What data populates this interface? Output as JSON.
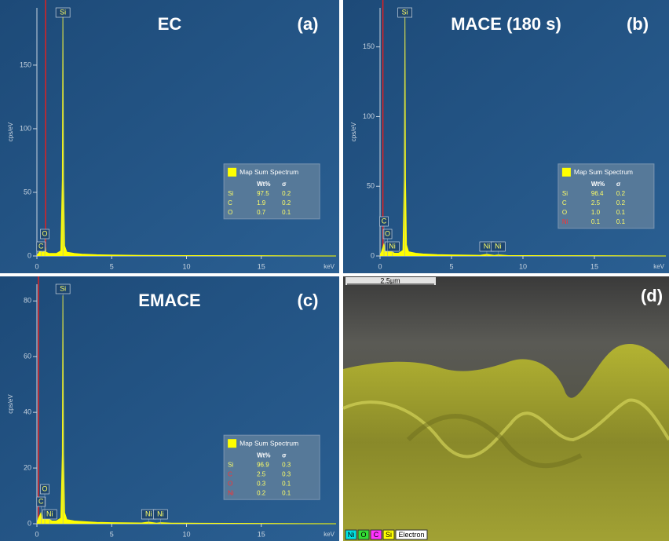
{
  "chart_data": [
    {
      "type": "area",
      "title": "EC",
      "panel_label": "(a)",
      "ylabel": "cps/eV",
      "xlabel": "keV",
      "x": [
        0,
        0.1,
        0.2,
        0.277,
        0.35,
        0.45,
        0.525,
        0.6,
        0.8,
        1.0,
        1.3,
        1.6,
        1.7,
        1.74,
        1.78,
        1.85,
        2.0,
        2.5,
        3,
        4,
        5,
        7,
        10,
        15,
        20
      ],
      "series": [
        {
          "name": "Map Sum Spectrum",
          "color": "#ffff00",
          "values": [
            0,
            2,
            4,
            6,
            3,
            3,
            10,
            3,
            2,
            2,
            2,
            4,
            60,
            189,
            60,
            8,
            3,
            2,
            1.5,
            1,
            0.8,
            0.5,
            0.3,
            0.2,
            0
          ]
        }
      ],
      "xlim": [
        0,
        20
      ],
      "ylim": [
        0,
        195
      ],
      "xticks": [
        0,
        5,
        10,
        15
      ],
      "yticks": [
        0,
        50,
        100,
        150
      ],
      "cursor": 0.58,
      "peak_labels": [
        {
          "label": "C",
          "x": 0.277
        },
        {
          "label": "O",
          "x": 0.525
        },
        {
          "label": "Si",
          "x": 1.74
        }
      ],
      "legend_table": {
        "header": [
          "Wt%",
          "σ"
        ],
        "rows": [
          [
            "Si",
            "97.5",
            "0.2"
          ],
          [
            "C",
            "1.9",
            "0.2"
          ],
          [
            "O",
            "0.7",
            "0.1"
          ]
        ],
        "row_colors": [
          "#ffff66",
          "#ffff66",
          "#ffff66"
        ]
      }
    },
    {
      "type": "area",
      "title": "MACE (180 s)",
      "panel_label": "(b)",
      "ylabel": "cps/eV",
      "xlabel": "keV",
      "x": [
        0,
        0.1,
        0.2,
        0.277,
        0.35,
        0.45,
        0.525,
        0.6,
        0.85,
        1.0,
        1.3,
        1.6,
        1.7,
        1.74,
        1.78,
        1.85,
        2.0,
        2.5,
        3,
        4,
        5,
        7,
        7.47,
        8,
        8.26,
        9,
        10,
        15,
        20
      ],
      "series": [
        {
          "name": "Map Sum Spectrum",
          "color": "#ffff00",
          "values": [
            0,
            3,
            6,
            9,
            4,
            3,
            8,
            3,
            3,
            2,
            2,
            4,
            55,
            171,
            55,
            8,
            3,
            2,
            1.5,
            1,
            0.8,
            0.5,
            1.2,
            0.4,
            0.8,
            0.3,
            0.3,
            0.2,
            0
          ]
        }
      ],
      "xlim": [
        0,
        20
      ],
      "ylim": [
        0,
        178
      ],
      "xticks": [
        0,
        5,
        10,
        15
      ],
      "yticks": [
        0,
        50,
        100,
        150
      ],
      "cursor": 0.2,
      "peak_labels": [
        {
          "label": "Ni",
          "x": 0.85
        },
        {
          "label": "O",
          "x": 0.525
        },
        {
          "label": "C",
          "x": 0.277
        },
        {
          "label": "Si",
          "x": 1.74
        },
        {
          "label": "Ni",
          "x": 7.47
        },
        {
          "label": "Ni",
          "x": 8.26
        }
      ],
      "legend_table": {
        "header": [
          "Wt%",
          "σ"
        ],
        "rows": [
          [
            "Si",
            "96.4",
            "0.2"
          ],
          [
            "C",
            "2.5",
            "0.2"
          ],
          [
            "O",
            "1.0",
            "0.1"
          ],
          [
            "Ni",
            "0.1",
            "0.1"
          ]
        ],
        "row_colors": [
          "#ffff66",
          "#ffff66",
          "#ffff66",
          "#ff3030"
        ]
      }
    },
    {
      "type": "area",
      "title": "EMACE",
      "panel_label": "(c)",
      "ylabel": "cps/eV",
      "xlabel": "keV",
      "x": [
        0,
        0.1,
        0.2,
        0.277,
        0.35,
        0.45,
        0.525,
        0.6,
        0.85,
        1.0,
        1.3,
        1.6,
        1.7,
        1.74,
        1.78,
        1.85,
        2.0,
        2.5,
        3,
        4,
        5,
        7,
        7.47,
        8,
        8.26,
        9,
        10,
        15,
        20
      ],
      "series": [
        {
          "name": "Map Sum Spectrum",
          "color": "#ffff00",
          "values": [
            0,
            2,
            3,
            4,
            2,
            1.5,
            3,
            1.5,
            1.5,
            1,
            1,
            2,
            25,
            82,
            25,
            4,
            1.5,
            1,
            0.8,
            0.5,
            0.4,
            0.3,
            0.6,
            0.2,
            0.4,
            0.2,
            0.2,
            0.1,
            0
          ]
        }
      ],
      "xlim": [
        0,
        20
      ],
      "ylim": [
        0,
        86
      ],
      "xticks": [
        0,
        5,
        10,
        15
      ],
      "yticks": [
        0,
        20,
        40,
        60,
        80
      ],
      "cursor": 0.1,
      "peak_labels": [
        {
          "label": "Ni",
          "x": 0.85
        },
        {
          "label": "C",
          "x": 0.277
        },
        {
          "label": "O",
          "x": 0.525
        },
        {
          "label": "Si",
          "x": 1.74
        },
        {
          "label": "Ni",
          "x": 7.47
        },
        {
          "label": "Ni",
          "x": 8.26
        }
      ],
      "legend_table": {
        "header": [
          "Wt%",
          "σ"
        ],
        "rows": [
          [
            "Si",
            "96.9",
            "0.3"
          ],
          [
            "C",
            "2.5",
            "0.3"
          ],
          [
            "O",
            "0.3",
            "0.1"
          ],
          [
            "Ni",
            "0.2",
            "0.1"
          ]
        ],
        "row_colors": [
          "#ffff66",
          "#ff3030",
          "#ff3030",
          "#ff3030"
        ]
      }
    }
  ],
  "image_panel": {
    "panel_label": "(d)",
    "scale_bar": "2.5µm",
    "legend": [
      {
        "label": "Ni",
        "color": "#00e5e5"
      },
      {
        "label": "O",
        "color": "#33dd33"
      },
      {
        "label": "C",
        "color": "#ff33ff"
      },
      {
        "label": "Si",
        "color": "#ffff00"
      },
      {
        "label": "Electron",
        "color": "#ffffff"
      }
    ]
  }
}
